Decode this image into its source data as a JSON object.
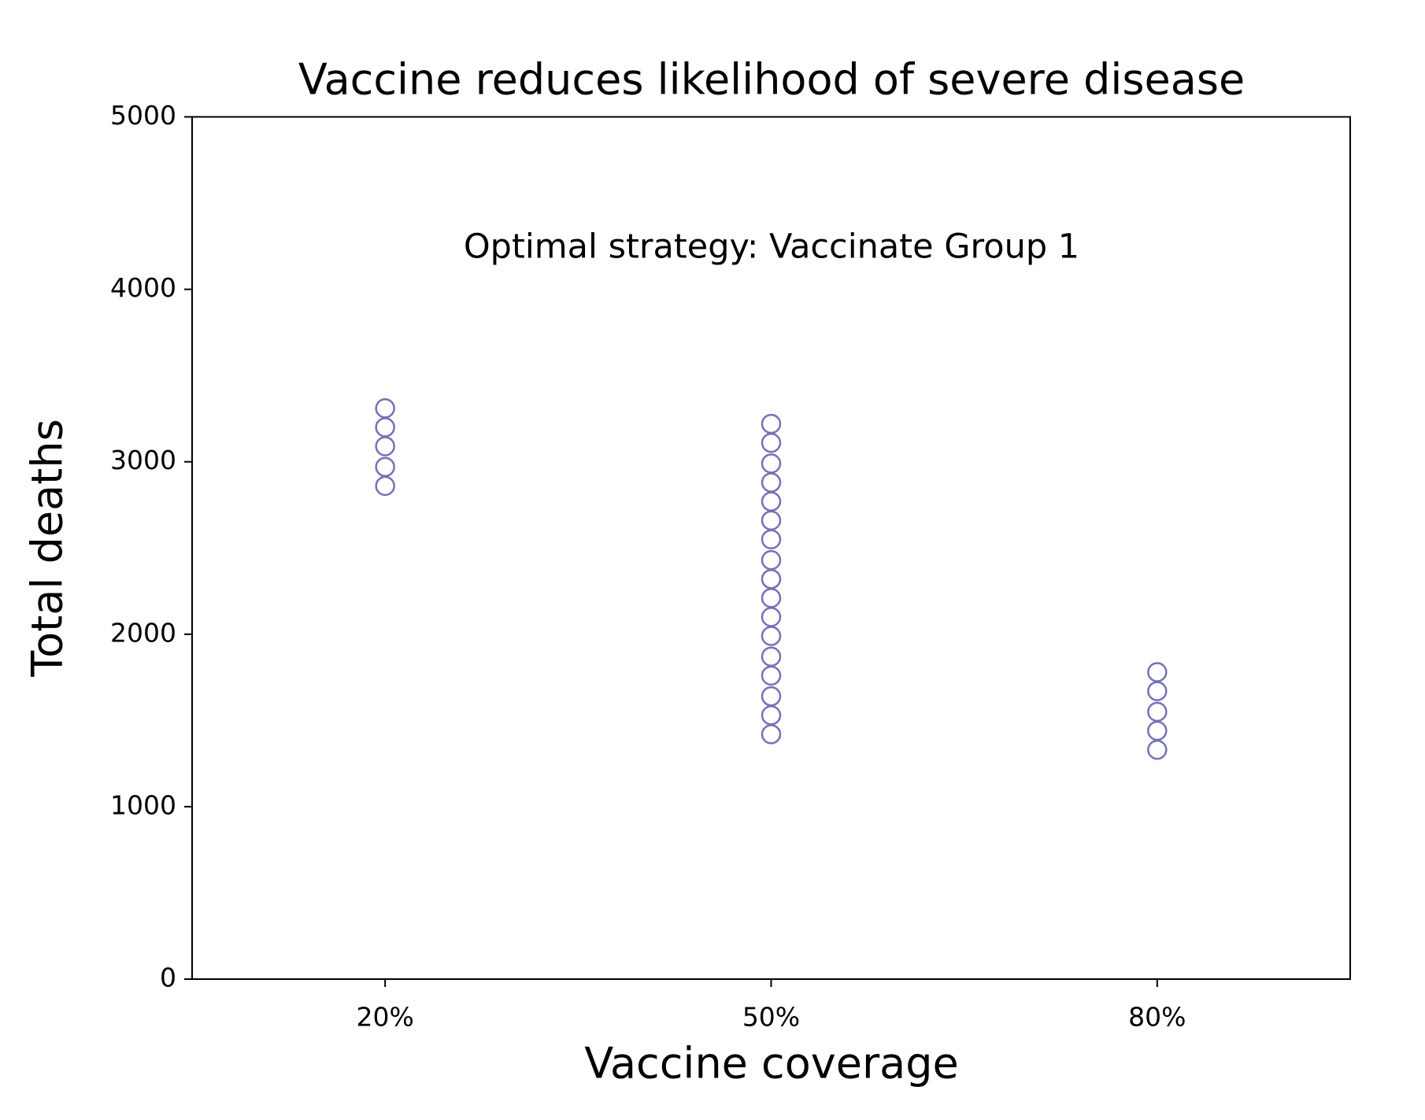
{
  "chart_data": {
    "type": "scatter",
    "title": "Vaccine reduces likelihood of severe disease",
    "annotation": "Optimal strategy: Vaccinate Group 1",
    "x_label": "Vaccine coverage",
    "y_label": "Total deaths",
    "categories": [
      "20%",
      "50%",
      "80%"
    ],
    "values": [
      [
        3310,
        3200,
        3090,
        2970,
        2860
      ],
      [
        3220,
        3110,
        2990,
        2880,
        2770,
        2660,
        2550,
        2430,
        2320,
        2210,
        2100,
        1990,
        1870,
        1760,
        1640,
        1530,
        1420
      ],
      [
        1780,
        1670,
        1550,
        1440,
        1330
      ]
    ],
    "color": "#7472b6",
    "ylim": [
      0,
      5000
    ],
    "yticks": [
      0,
      1000,
      2000,
      3000,
      4000,
      5000
    ],
    "grid": false
  }
}
